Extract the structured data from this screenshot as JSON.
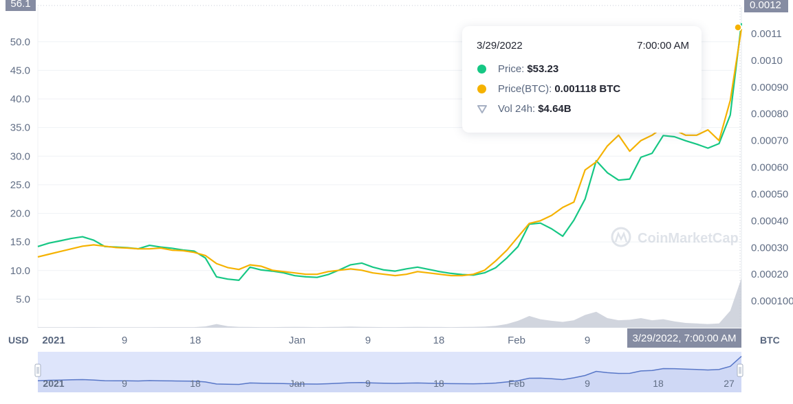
{
  "tooltip": {
    "date": "3/29/2022",
    "time": "7:00:00 AM",
    "price_label": "Price:",
    "price_value": "$53.23",
    "price_btc_label": "Price(BTC):",
    "price_btc_value": "0.001118 BTC",
    "vol_label": "Vol 24h:",
    "vol_value": "$4.64B"
  },
  "crosshair_label": "3/29/2022, 7:00:00 AM",
  "left_axis_unit": "USD",
  "right_axis_unit": "BTC",
  "watermark": "CoinMarketCap",
  "left_top_clipped": "56.1",
  "right_top_clipped": "0.0012",
  "colors": {
    "price": "#16c784",
    "price_btc": "#f5b200",
    "volume": "#c5cbd6",
    "navigator_fill": "#dee5fb",
    "navigator_line": "#5776c7",
    "label_bg": "#858ca2"
  },
  "chart_data": {
    "type": "line",
    "title": "",
    "y_left": {
      "label": "USD",
      "ticks": [
        "5.0",
        "10.0",
        "15.0",
        "20.0",
        "25.0",
        "30.0",
        "35.0",
        "40.0",
        "45.0",
        "50.0"
      ],
      "range": [
        0,
        56.1
      ]
    },
    "y_right": {
      "label": "BTC",
      "ticks": [
        "0.0001000",
        "0.00020",
        "0.00030",
        "0.00040",
        "0.00050",
        "0.00060",
        "0.00070",
        "0.00080",
        "0.00090",
        "0.0010",
        "0.0011"
      ],
      "range": [
        0,
        0.0012
      ]
    },
    "x_ticks": [
      "2021",
      "9",
      "18",
      "Jan",
      "9",
      "18",
      "Feb",
      "9",
      "18",
      "27"
    ],
    "navigator_x_ticks": [
      "2021",
      "9",
      "18",
      "Jan",
      "9",
      "18",
      "Feb",
      "9",
      "18",
      "27"
    ],
    "series": [
      {
        "name": "Price",
        "axis": "left",
        "values": [
          14.2,
          14.8,
          15.2,
          15.6,
          15.9,
          15.3,
          14.2,
          14.1,
          14.0,
          13.8,
          14.4,
          14.1,
          13.9,
          13.6,
          13.4,
          12.2,
          8.9,
          8.5,
          8.3,
          10.6,
          10.1,
          9.9,
          9.6,
          9.1,
          8.9,
          8.8,
          9.3,
          10.1,
          11.0,
          11.3,
          10.6,
          10.1,
          9.9,
          10.3,
          10.6,
          10.2,
          9.8,
          9.5,
          9.3,
          9.2,
          9.6,
          10.5,
          12.2,
          14.2,
          18.1,
          18.3,
          17.3,
          16.0,
          18.8,
          22.5,
          29.2,
          27.1,
          25.8,
          26.0,
          29.8,
          30.5,
          33.6,
          33.4,
          32.7,
          32.1,
          31.4,
          32.2,
          37.2,
          53.23
        ]
      },
      {
        "name": "Price(BTC)",
        "axis": "right",
        "values": [
          0.000265,
          0.000275,
          0.000285,
          0.000295,
          0.000305,
          0.00031,
          0.000305,
          0.0003,
          0.000298,
          0.000295,
          0.000295,
          0.000298,
          0.00029,
          0.000288,
          0.000282,
          0.00027,
          0.00024,
          0.000225,
          0.000218,
          0.000235,
          0.00023,
          0.000215,
          0.00021,
          0.000205,
          0.0002,
          0.0002,
          0.00021,
          0.000215,
          0.00022,
          0.000215,
          0.000205,
          0.0002,
          0.000195,
          0.0002,
          0.00021,
          0.000205,
          0.0002,
          0.000195,
          0.000195,
          0.0002,
          0.000215,
          0.00025,
          0.00029,
          0.00034,
          0.00039,
          0.0004,
          0.00042,
          0.00045,
          0.00047,
          0.00059,
          0.00062,
          0.00068,
          0.00072,
          0.00066,
          0.0007,
          0.00072,
          0.00075,
          0.00074,
          0.00072,
          0.00072,
          0.00074,
          0.0007,
          0.00085,
          0.001118
        ]
      },
      {
        "name": "Vol 24h",
        "axis": "volume",
        "values": [
          0.05,
          0.05,
          0.05,
          0.05,
          0.06,
          0.06,
          0.05,
          0.05,
          0.05,
          0.05,
          0.05,
          0.06,
          0.06,
          0.06,
          0.06,
          0.12,
          0.35,
          0.15,
          0.08,
          0.07,
          0.06,
          0.06,
          0.07,
          0.08,
          0.07,
          0.06,
          0.07,
          0.08,
          0.1,
          0.08,
          0.07,
          0.06,
          0.06,
          0.07,
          0.08,
          0.07,
          0.07,
          0.06,
          0.07,
          0.08,
          0.1,
          0.18,
          0.35,
          0.65,
          1.1,
          0.8,
          0.65,
          0.55,
          0.7,
          1.2,
          1.5,
          0.9,
          0.7,
          0.75,
          0.9,
          0.7,
          0.8,
          0.6,
          0.45,
          0.4,
          0.35,
          0.4,
          1.6,
          4.64
        ]
      }
    ],
    "legend": "none",
    "grid": true
  }
}
